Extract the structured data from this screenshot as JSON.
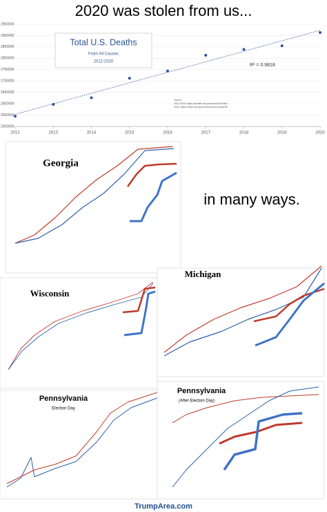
{
  "caption": "2020 was stolen from us...",
  "chart_data": {
    "type": "scatter",
    "title": "Total U.S. Deaths",
    "subtitle": "From All Causes",
    "period": "2012-2020",
    "annotation": "R² = 0.9818",
    "source": [
      "Source:",
      "2012-2019: https://wonder.cdc.gov/ucd-icd10.html",
      "2020: https://www.cdc.gov/nchs/nvss/vsrr/covid19/"
    ],
    "x": [
      2012,
      2013,
      2014,
      2015,
      2016,
      2017,
      2018,
      2019,
      2020
    ],
    "values": [
      2545000,
      2597000,
      2626000,
      2712000,
      2744000,
      2813000,
      2839000,
      2855000,
      2913000
    ],
    "color": "#2f5597",
    "xlim": [
      2012,
      2020
    ],
    "xticks": [
      2012,
      2013,
      2014,
      2015,
      2016,
      2017,
      2018,
      2019,
      2020
    ],
    "ylim": [
      2500000,
      2950000
    ],
    "yticks": [
      2500000,
      2550000,
      2600000,
      2650000,
      2700000,
      2750000,
      2800000,
      2850000,
      2900000,
      2950000
    ],
    "grid": true,
    "trendline": true
  },
  "middle_text": "in many ways.",
  "panels": [
    {
      "title": "Georgia"
    },
    {
      "title": "Wisconsin"
    },
    {
      "title": "Michigan"
    },
    {
      "title": "Pennsylvania",
      "subtitle": "Election Day"
    },
    {
      "title": "Pennsylvania",
      "subtitle": "(After Election Day)"
    }
  ],
  "footer": "TrumpArea.com"
}
